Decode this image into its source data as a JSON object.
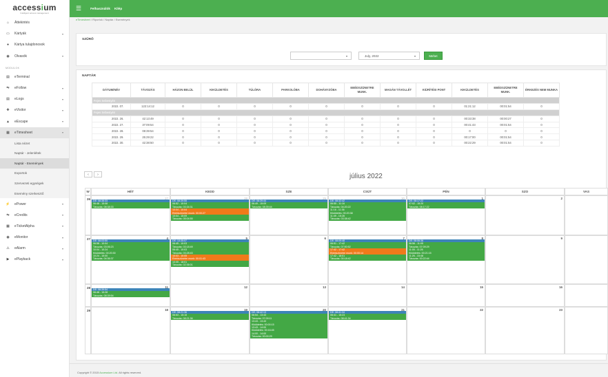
{
  "logo": {
    "pre": "access",
    "accent": "i",
    "post": "um",
    "sub": "Intelligent access management"
  },
  "topbar": {
    "link1": "Felhasználók",
    "link2": "Kilép"
  },
  "breadcrumb": [
    "eTimesheet",
    "Riportok",
    "Naptár",
    "Események"
  ],
  "sidebar": {
    "items_top": [
      {
        "icon": "⌂",
        "label": "Áttekintés",
        "chev": ""
      },
      {
        "icon": "▭",
        "label": "Kártyák",
        "chev": "▾"
      },
      {
        "icon": "●",
        "label": "Kártya tulajdonosok",
        "chev": ""
      },
      {
        "icon": "◉",
        "label": "Olvasók",
        "chev": "▾"
      }
    ],
    "section": "MODULOK",
    "modules": [
      {
        "icon": "▤",
        "label": "eTerminal",
        "chev": ""
      },
      {
        "icon": "⇆",
        "label": "eFollow",
        "chev": "▾"
      },
      {
        "icon": "▤",
        "label": "eLogs",
        "chev": "▾"
      },
      {
        "icon": "✚",
        "label": "eVisitor",
        "chev": "▾"
      },
      {
        "icon": "▲",
        "label": "eEscape",
        "chev": "▾"
      },
      {
        "icon": "▦",
        "label": "eTimesheet",
        "chev": "▾"
      }
    ],
    "subitems": [
      "Lista nézet",
      "Naptár - Jelenlétek",
      "Naptár - Események",
      "Exportok",
      "Szervezeti egységek",
      "Esemény szerkesztő"
    ],
    "modules2": [
      {
        "icon": "⚡",
        "label": "ePower",
        "chev": "▾"
      },
      {
        "icon": "⇆",
        "label": "eCredits",
        "chev": "▾"
      },
      {
        "icon": "▦",
        "label": "eTicketAlpha",
        "chev": "▾"
      },
      {
        "icon": "◉",
        "label": "eMonitor",
        "chev": "▾"
      },
      {
        "icon": "⚠",
        "label": "eAlarm",
        "chev": "▾"
      },
      {
        "icon": "▶",
        "label": "ePlayback",
        "chev": "▾"
      }
    ]
  },
  "filter": {
    "title": "SZŰRŐ",
    "select1": "",
    "select2": "July, 2022",
    "button": "Mehet"
  },
  "stats": {
    "title": "NAPTÁR",
    "headers": [
      "DÁTUM/NÉV",
      "TÁVOZÁS",
      "HÁZON BELÜL",
      "KIKÜLDETÉS",
      "TÚLÓRA",
      "PARKOLÓBA",
      "DOHÁNYZÓBA",
      "EBÉDSZÜNETRE MUNK.",
      "MAGÁN TÁVOLLÉT",
      "KIÜRÍTÉSI PONT",
      "KIKÜLDETÉS",
      "EBÉDSZÜNETRE MUNK.",
      "ÉRKEZÉS NEM MUNKA"
    ],
    "rows": [
      {
        "group": "Fejes Sebestyén"
      },
      {
        "cells": [
          "2022. 07.",
          "122:14:12",
          "0",
          "0",
          "0",
          "0",
          "0",
          "0",
          "0",
          "0",
          "01:21:12",
          "00:01:54",
          "0"
        ]
      },
      {
        "group": "Fejes Sebestyén"
      },
      {
        "cells": [
          "2022. 26.",
          "42:13:49",
          "0",
          "0",
          "0",
          "0",
          "0",
          "0",
          "0",
          "0",
          "00:33:38",
          "00:00:27",
          "0"
        ]
      },
      {
        "cells": [
          "2022. 27.",
          "37:09:54",
          "0",
          "0",
          "0",
          "0",
          "0",
          "0",
          "0",
          "0",
          "00:41:43",
          "00:01:54",
          "0"
        ]
      },
      {
        "cells": [
          "2022. 28.",
          "08:39:54",
          "0",
          "0",
          "0",
          "0",
          "0",
          "0",
          "0",
          "0",
          "0",
          "0",
          "0"
        ]
      },
      {
        "cells": [
          "2022. 29.",
          "25:29:22",
          "0",
          "0",
          "0",
          "0",
          "0",
          "0",
          "0",
          "0",
          "00:17:00",
          "00:01:54",
          "0"
        ]
      },
      {
        "cells": [
          "2022. 30.",
          "42:38:50",
          "0",
          "0",
          "0",
          "0",
          "0",
          "0",
          "0",
          "0",
          "00:22:29",
          "00:01:54",
          "0"
        ]
      }
    ]
  },
  "calendar": {
    "title": "július 2022",
    "prev": "‹",
    "next": "›",
    "headers": [
      "W",
      "HÉT",
      "KEDD",
      "SZE",
      "CSÜT",
      "PÉN",
      "SZO",
      "VAS"
    ],
    "weeks": [
      {
        "wk": "26",
        "days": [
          {
            "n": "27",
            "o": true
          },
          {
            "n": "28",
            "o": true
          },
          {
            "n": "29",
            "o": true
          },
          {
            "n": "30",
            "o": true
          },
          {
            "n": "1"
          },
          {
            "n": "2"
          },
          {
            "n": ""
          }
        ]
      },
      {
        "wk": "27",
        "days": [
          {
            "n": "4"
          },
          {
            "n": "5"
          },
          {
            "n": "6"
          },
          {
            "n": "7"
          },
          {
            "n": "8"
          },
          {
            "n": "9"
          },
          {
            "n": ""
          }
        ]
      },
      {
        "wk": "28",
        "days": [
          {
            "n": "11"
          },
          {
            "n": "12"
          },
          {
            "n": "13"
          },
          {
            "n": "14"
          },
          {
            "n": "15"
          },
          {
            "n": "16"
          },
          {
            "n": ""
          }
        ]
      },
      {
        "wk": "29",
        "days": [
          {
            "n": "18"
          },
          {
            "n": "19"
          },
          {
            "n": "20"
          },
          {
            "n": "21"
          },
          {
            "n": "22"
          },
          {
            "n": "23"
          },
          {
            "n": ""
          }
        ]
      }
    ],
    "events": [
      {
        "w": 0,
        "d": 0,
        "c": "b",
        "t": "DE: 08:38:33"
      },
      {
        "w": 0,
        "d": 0,
        "c": "g",
        "t": "06:48 - 15:08"
      },
      {
        "w": 0,
        "d": 0,
        "c": "g",
        "t": "Távozás: 08:38:33"
      },
      {
        "w": 0,
        "d": 1,
        "c": "b",
        "t": "DE: 08:39:55"
      },
      {
        "w": 0,
        "d": 1,
        "c": "g",
        "t": "06:52 - 10:04"
      },
      {
        "w": 0,
        "d": 1,
        "c": "g",
        "t": "Távozás: 03:34:31"
      },
      {
        "w": 0,
        "d": 1,
        "c": "o",
        "t": "10:04 - 10:04"
      },
      {
        "w": 0,
        "d": 1,
        "c": "o",
        "t": "Ebédszünetre munk: 00:00:27"
      },
      {
        "w": 0,
        "d": 1,
        "c": "g",
        "t": "10:04 - 15:09"
      },
      {
        "w": 0,
        "d": 1,
        "c": "g",
        "t": "Távozás: 05:04:55"
      },
      {
        "w": 0,
        "d": 2,
        "c": "b",
        "t": "DE: 08:39:44"
      },
      {
        "w": 0,
        "d": 2,
        "c": "g",
        "t": "06:49 - 15:09"
      },
      {
        "w": 0,
        "d": 2,
        "c": "g",
        "t": "Távozás: 08:39:44"
      },
      {
        "w": 0,
        "d": 3,
        "c": "b",
        "t": "DE: 08:32:42"
      },
      {
        "w": 0,
        "d": 3,
        "c": "g",
        "t": "06:55 - 11:16"
      },
      {
        "w": 0,
        "d": 3,
        "c": "g",
        "t": "Távozás: 04:20:22"
      },
      {
        "w": 0,
        "d": 3,
        "c": "g",
        "t": "11:16 - 11:36"
      },
      {
        "w": 0,
        "d": 3,
        "c": "g",
        "t": "Kiküldetés: 00:20:38"
      },
      {
        "w": 0,
        "d": 3,
        "c": "g",
        "t": "11:49 - 15:28"
      },
      {
        "w": 0,
        "d": 3,
        "c": "g",
        "t": "Távozás: 03:38:42"
      },
      {
        "w": 0,
        "d": 4,
        "c": "b",
        "t": "DE: 08:17:22"
      },
      {
        "w": 0,
        "d": 4,
        "c": "g",
        "t": "07:02 - 15:20"
      },
      {
        "w": 0,
        "d": 4,
        "c": "g",
        "t": "Távozás: 08:17:22"
      },
      {
        "w": 1,
        "d": 0,
        "c": "b",
        "t": "DE: 08:03:50"
      },
      {
        "w": 1,
        "d": 0,
        "c": "g",
        "t": "06:58 - 10:04"
      },
      {
        "w": 1,
        "d": 0,
        "c": "g",
        "t": "Távozás: 03:06:23"
      },
      {
        "w": 1,
        "d": 0,
        "c": "g",
        "t": "10:04 - 10:24"
      },
      {
        "w": 1,
        "d": 0,
        "c": "g",
        "t": "Kiküldetés: 00:20:30"
      },
      {
        "w": 1,
        "d": 0,
        "c": "g",
        "t": "10:24 - 15:00"
      },
      {
        "w": 1,
        "d": 0,
        "c": "g",
        "t": "Távozás: 04:36:37"
      },
      {
        "w": 1,
        "d": 1,
        "c": "b",
        "t": "DE: 13:35:07"
      },
      {
        "w": 1,
        "d": 1,
        "c": "g",
        "t": "06:45 - 10:03"
      },
      {
        "w": 1,
        "d": 1,
        "c": "g",
        "t": "Távozás: 03:18:49"
      },
      {
        "w": 1,
        "d": 1,
        "c": "g",
        "t": "06:45 - 10:03"
      },
      {
        "w": 1,
        "d": 1,
        "c": "g",
        "t": "Távozás: 03:28:43"
      },
      {
        "w": 1,
        "d": 1,
        "c": "o",
        "t": "10:03 - 10:05"
      },
      {
        "w": 1,
        "d": 1,
        "c": "o",
        "t": "Ebédszünetre munk: 00:01:43"
      },
      {
        "w": 1,
        "d": 1,
        "c": "g",
        "t": "10:05 - 18:01"
      },
      {
        "w": 1,
        "d": 1,
        "c": "g",
        "t": "Távozás: 02:36:01"
      },
      {
        "w": 1,
        "d": 3,
        "c": "b",
        "t": "DE: 08:09:48"
      },
      {
        "w": 1,
        "d": 3,
        "c": "g",
        "t": "06:51 - 17:42"
      },
      {
        "w": 1,
        "d": 3,
        "c": "g",
        "t": "Távozás: 07:50:52"
      },
      {
        "w": 1,
        "d": 3,
        "c": "o",
        "t": "17:42 - 17:42"
      },
      {
        "w": 1,
        "d": 3,
        "c": "o",
        "t": "Ebédszünetre munk: 00:00:14"
      },
      {
        "w": 1,
        "d": 3,
        "c": "g",
        "t": "17:42 - 18:01"
      },
      {
        "w": 1,
        "d": 3,
        "c": "g",
        "t": "Távozás: 00:18:42"
      },
      {
        "w": 1,
        "d": 4,
        "c": "b",
        "t": "DE: 08:06:36"
      },
      {
        "w": 1,
        "d": 4,
        "c": "g",
        "t": "06:56 - 11:05"
      },
      {
        "w": 1,
        "d": 4,
        "c": "g",
        "t": "Távozás: 07:09:29"
      },
      {
        "w": 1,
        "d": 4,
        "c": "g",
        "t": "11:05 - 11:26"
      },
      {
        "w": 1,
        "d": 4,
        "c": "g",
        "t": "Kiküldetés: 00:21:15"
      },
      {
        "w": 1,
        "d": 4,
        "c": "g",
        "t": "11:26 - 15:48"
      },
      {
        "w": 1,
        "d": 4,
        "c": "g",
        "t": "Távozás: 00:22:44"
      },
      {
        "w": 2,
        "d": 0,
        "c": "b",
        "t": "DE: 08:39:54"
      },
      {
        "w": 2,
        "d": 0,
        "c": "g",
        "t": "06:48 - 15:28"
      },
      {
        "w": 2,
        "d": 0,
        "c": "g",
        "t": "Távozás: 08:39:54"
      },
      {
        "w": 3,
        "d": 1,
        "c": "b",
        "t": "DE: 08:21:36"
      },
      {
        "w": 3,
        "d": 1,
        "c": "g",
        "t": "06:53 - 15:15"
      },
      {
        "w": 3,
        "d": 1,
        "c": "g",
        "t": "Távozás: 08:21:36"
      },
      {
        "w": 3,
        "d": 2,
        "c": "b",
        "t": "DE: 08:42:13"
      },
      {
        "w": 3,
        "d": 2,
        "c": "g",
        "t": "06:54 - 13:43"
      },
      {
        "w": 3,
        "d": 2,
        "c": "g",
        "t": "Távozás: 07:09:11"
      },
      {
        "w": 3,
        "d": 2,
        "c": "g",
        "t": "13:43 - 13:43"
      },
      {
        "w": 3,
        "d": 2,
        "c": "g",
        "t": "Kiküldetés: 00:00:15"
      },
      {
        "w": 3,
        "d": 2,
        "c": "g",
        "t": "13:43 - 14:00"
      },
      {
        "w": 3,
        "d": 2,
        "c": "g",
        "t": "Kiküldetés: 00:16:45"
      },
      {
        "w": 3,
        "d": 2,
        "c": "g",
        "t": "14:00 - 14:00"
      },
      {
        "w": 3,
        "d": 2,
        "c": "g",
        "t": "Távozás: 00:00:29"
      },
      {
        "w": 3,
        "d": 3,
        "c": "b",
        "t": "DE: 08:41:34"
      },
      {
        "w": 3,
        "d": 3,
        "c": "g",
        "t": "06:41 - 15:23"
      },
      {
        "w": 3,
        "d": 3,
        "c": "g",
        "t": "Távozás: 08:41:34"
      }
    ]
  },
  "footer": {
    "pre": "Copyright © 2015 ",
    "link": "Accessium Ltd.",
    "post": " All rights reserved."
  }
}
